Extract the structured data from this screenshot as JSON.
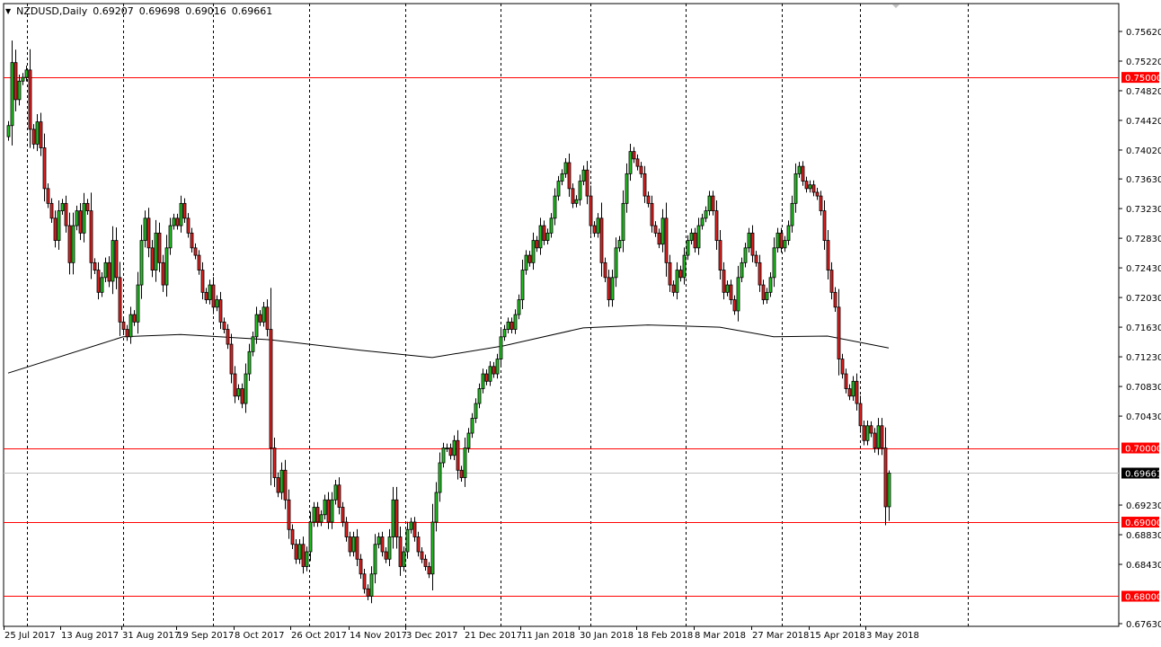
{
  "header": {
    "symbol": "NZDUSD,Daily",
    "open": "0.69207",
    "high": "0.69698",
    "low": "0.69016",
    "close": "0.69661"
  },
  "colors": {
    "bull": "#22c322",
    "bear": "#e02020",
    "level_line": "#ff0000",
    "level_label_bg": "#ff0000",
    "current_label_bg": "#000000",
    "current_line": "#c0c0c0",
    "ma_line": "#000000"
  },
  "chart_data": {
    "type": "candlestick",
    "title": "NZDUSD,Daily",
    "ylim": [
      0.6745,
      0.7578
    ],
    "y_ticks": [
      "0.75620",
      "0.75220",
      "0.74820",
      "0.74420",
      "0.74020",
      "0.73630",
      "0.73230",
      "0.72830",
      "0.72430",
      "0.72030",
      "0.71630",
      "0.71230",
      "0.70830",
      "0.70430",
      "0.69230",
      "0.68830",
      "0.68430",
      "0.67630"
    ],
    "x_ticks": [
      "25 Jul 2017",
      "13 Aug 2017",
      "31 Aug 2017",
      "19 Sep 2017",
      "8 Oct 2017",
      "26 Oct 2017",
      "14 Nov 2017",
      "3 Dec 2017",
      "21 Dec 2017",
      "11 Jan 2018",
      "30 Jan 2018",
      "18 Feb 2018",
      "8 Mar 2018",
      "27 Mar 2018",
      "15 Apr 2018",
      "3 May 2018"
    ],
    "first_open": 0.742,
    "closes": [
      0.7435,
      0.752,
      0.747,
      0.7495,
      0.75,
      0.751,
      0.743,
      0.741,
      0.744,
      0.7405,
      0.735,
      0.733,
      0.731,
      0.728,
      0.732,
      0.733,
      0.73,
      0.725,
      0.73,
      0.732,
      0.729,
      0.733,
      0.732,
      0.725,
      0.724,
      0.721,
      0.723,
      0.725,
      0.7225,
      0.728,
      0.723,
      0.717,
      0.716,
      0.715,
      0.718,
      0.717,
      0.722,
      0.728,
      0.731,
      0.727,
      0.724,
      0.729,
      0.725,
      0.722,
      0.727,
      0.73,
      0.731,
      0.73,
      0.733,
      0.731,
      0.729,
      0.727,
      0.726,
      0.724,
      0.721,
      0.72,
      0.722,
      0.719,
      0.72,
      0.717,
      0.716,
      0.714,
      0.71,
      0.707,
      0.708,
      0.706,
      0.71,
      0.713,
      0.715,
      0.718,
      0.717,
      0.719,
      0.716,
      0.7,
      0.696,
      0.694,
      0.697,
      0.693,
      0.689,
      0.687,
      0.685,
      0.687,
      0.684,
      0.686,
      0.69,
      0.692,
      0.69,
      0.691,
      0.693,
      0.69,
      0.693,
      0.695,
      0.692,
      0.69,
      0.688,
      0.686,
      0.688,
      0.685,
      0.683,
      0.681,
      0.68,
      0.683,
      0.687,
      0.688,
      0.686,
      0.685,
      0.688,
      0.693,
      0.688,
      0.684,
      0.686,
      0.689,
      0.69,
      0.688,
      0.686,
      0.685,
      0.684,
      0.683,
      0.69,
      0.694,
      0.698,
      0.7,
      0.7,
      0.699,
      0.701,
      0.697,
      0.696,
      0.7,
      0.702,
      0.704,
      0.706,
      0.708,
      0.71,
      0.709,
      0.711,
      0.71,
      0.712,
      0.715,
      0.716,
      0.717,
      0.716,
      0.718,
      0.72,
      0.724,
      0.726,
      0.725,
      0.728,
      0.727,
      0.73,
      0.728,
      0.729,
      0.731,
      0.734,
      0.736,
      0.737,
      0.7385,
      0.735,
      0.733,
      0.7335,
      0.736,
      0.7375,
      0.734,
      0.73,
      0.729,
      0.731,
      0.725,
      0.723,
      0.72,
      0.723,
      0.727,
      0.728,
      0.733,
      0.737,
      0.74,
      0.739,
      0.738,
      0.737,
      0.734,
      0.733,
      0.73,
      0.729,
      0.7275,
      0.731,
      0.725,
      0.722,
      0.721,
      0.724,
      0.723,
      0.726,
      0.728,
      0.729,
      0.727,
      0.73,
      0.731,
      0.732,
      0.734,
      0.732,
      0.728,
      0.724,
      0.721,
      0.722,
      0.72,
      0.7185,
      0.723,
      0.725,
      0.727,
      0.729,
      0.726,
      0.725,
      0.722,
      0.72,
      0.721,
      0.723,
      0.727,
      0.729,
      0.727,
      0.728,
      0.73,
      0.733,
      0.737,
      0.738,
      0.736,
      0.735,
      0.7355,
      0.7345,
      0.734,
      0.732,
      0.728,
      0.724,
      0.721,
      0.719,
      0.712,
      0.71,
      0.708,
      0.707,
      0.709,
      0.706,
      0.703,
      0.701,
      0.703,
      0.702,
      0.7,
      0.703,
      0.7,
      0.69207,
      0.69661
    ],
    "last_candle": {
      "open": 0.69207,
      "high": 0.69698,
      "low": 0.69016,
      "close": 0.69661
    },
    "moving_average": [
      [
        0,
        0.7101
      ],
      [
        32,
        0.715
      ],
      [
        48,
        0.7153
      ],
      [
        73,
        0.7146
      ],
      [
        98,
        0.7132
      ],
      [
        118,
        0.7122
      ],
      [
        138,
        0.7138
      ],
      [
        160,
        0.7162
      ],
      [
        178,
        0.7166
      ],
      [
        198,
        0.7163
      ],
      [
        213,
        0.715
      ],
      [
        228,
        0.7151
      ],
      [
        245,
        0.7135
      ]
    ],
    "levels": [
      {
        "price": 0.75,
        "label": "0.75000"
      },
      {
        "price": 0.7,
        "label": "0.70000"
      },
      {
        "price": 0.69,
        "label": "0.69000"
      },
      {
        "price": 0.68,
        "label": "0.68000"
      }
    ],
    "current_price": {
      "price": 0.69661,
      "label": "0.69661"
    },
    "grid": "vertical dashed"
  }
}
